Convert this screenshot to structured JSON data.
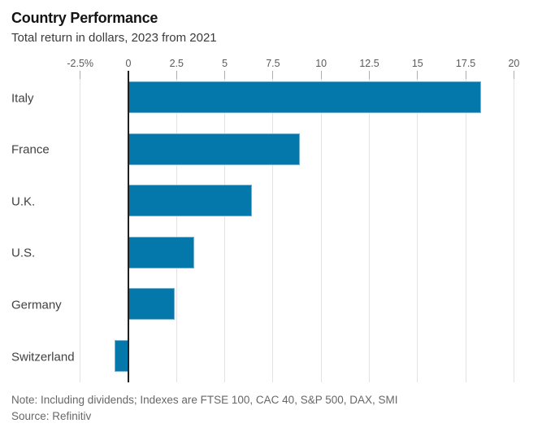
{
  "header": {
    "title": "Country Performance",
    "subtitle": "Total return in dollars, 2023 from 2021"
  },
  "chart_data": {
    "type": "bar",
    "orientation": "horizontal",
    "title": "Country Performance",
    "subtitle": "Total return in dollars, 2023 from 2021",
    "categories": [
      "Italy",
      "France",
      "U.K.",
      "U.S.",
      "Germany",
      "Switzerland"
    ],
    "values": [
      18.3,
      8.9,
      6.4,
      3.4,
      2.4,
      -0.7
    ],
    "unit": "%",
    "xlabel": "",
    "ylabel": "",
    "xlim": [
      -2.5,
      20
    ],
    "xticks": [
      -2.5,
      0,
      2.5,
      5,
      7.5,
      10,
      12.5,
      15,
      17.5,
      20
    ],
    "xtick_labels": [
      "-2.5%",
      "0",
      "2.5",
      "5",
      "7.5",
      "10",
      "12.5",
      "15",
      "17.5",
      "20"
    ],
    "grid": true,
    "legend": false,
    "bar_color": "#0478ab",
    "zero_axis_color": "#1f1f1f",
    "gridline_color": "#e3e3e3"
  },
  "footer": {
    "note": "Note: Including dividends; Indexes are FTSE 100, CAC 40, S&P 500, DAX, SMI",
    "source": "Source: Refinitiv"
  }
}
